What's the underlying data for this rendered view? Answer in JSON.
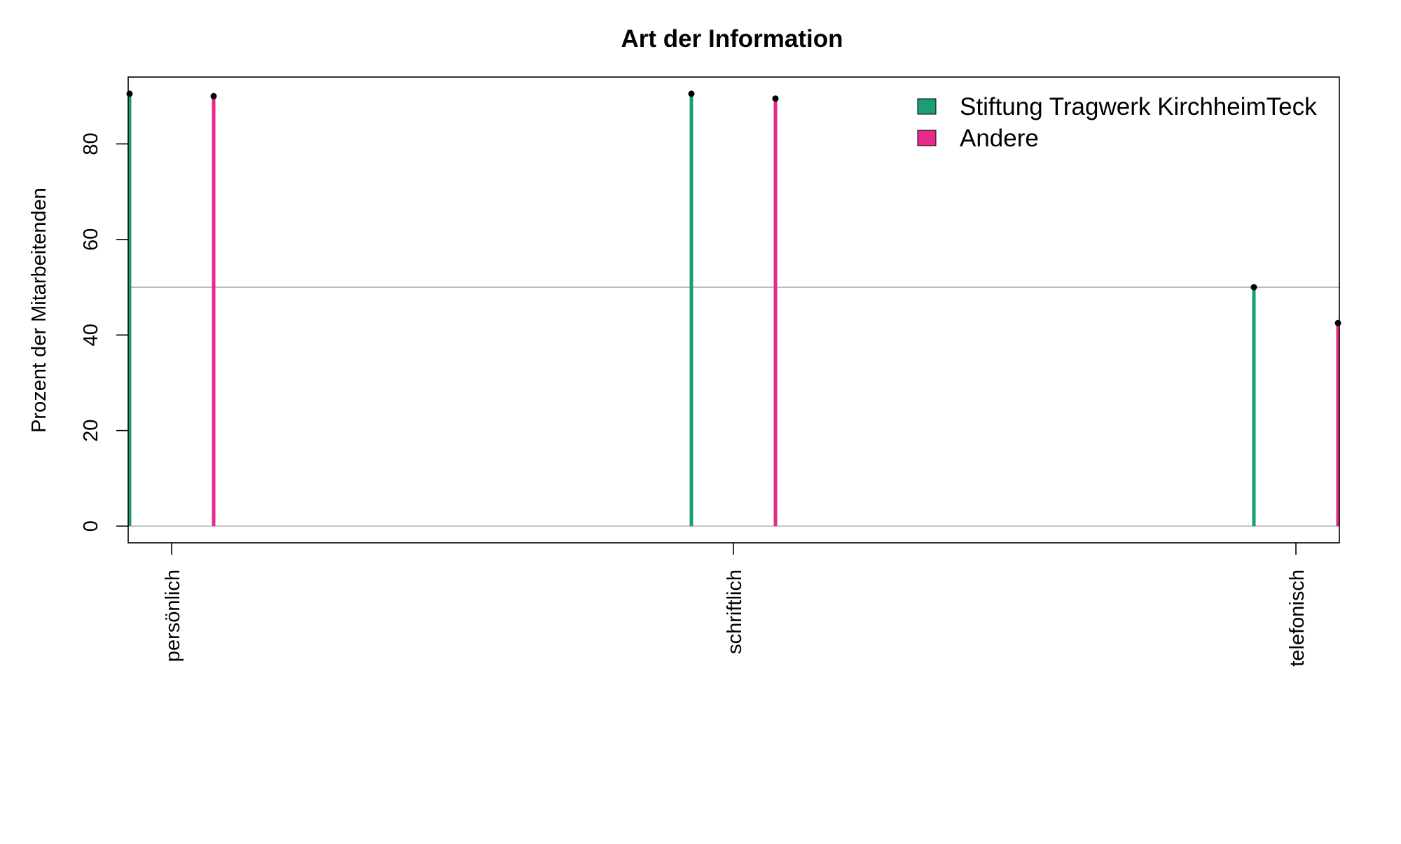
{
  "chart_data": {
    "type": "lollipop",
    "title": "Art der Information",
    "xlabel": "",
    "ylabel": "Prozent der Mitarbeitenden",
    "categories": [
      "persönlich",
      "schriftlich",
      "telefonisch"
    ],
    "series": [
      {
        "name": "Stiftung Tragwerk KirchheimTeck",
        "color": "#1b9e77",
        "values": [
          90.5,
          90.5,
          50
        ]
      },
      {
        "name": "Andere",
        "color": "#e7298a",
        "values": [
          90.0,
          89.5,
          42.5
        ]
      }
    ],
    "yticks": [
      0,
      20,
      40,
      60,
      80
    ],
    "ylim": [
      -3.5,
      94
    ],
    "reference_lines": [
      0,
      50
    ],
    "legend_position": "top-right",
    "grid": false
  }
}
